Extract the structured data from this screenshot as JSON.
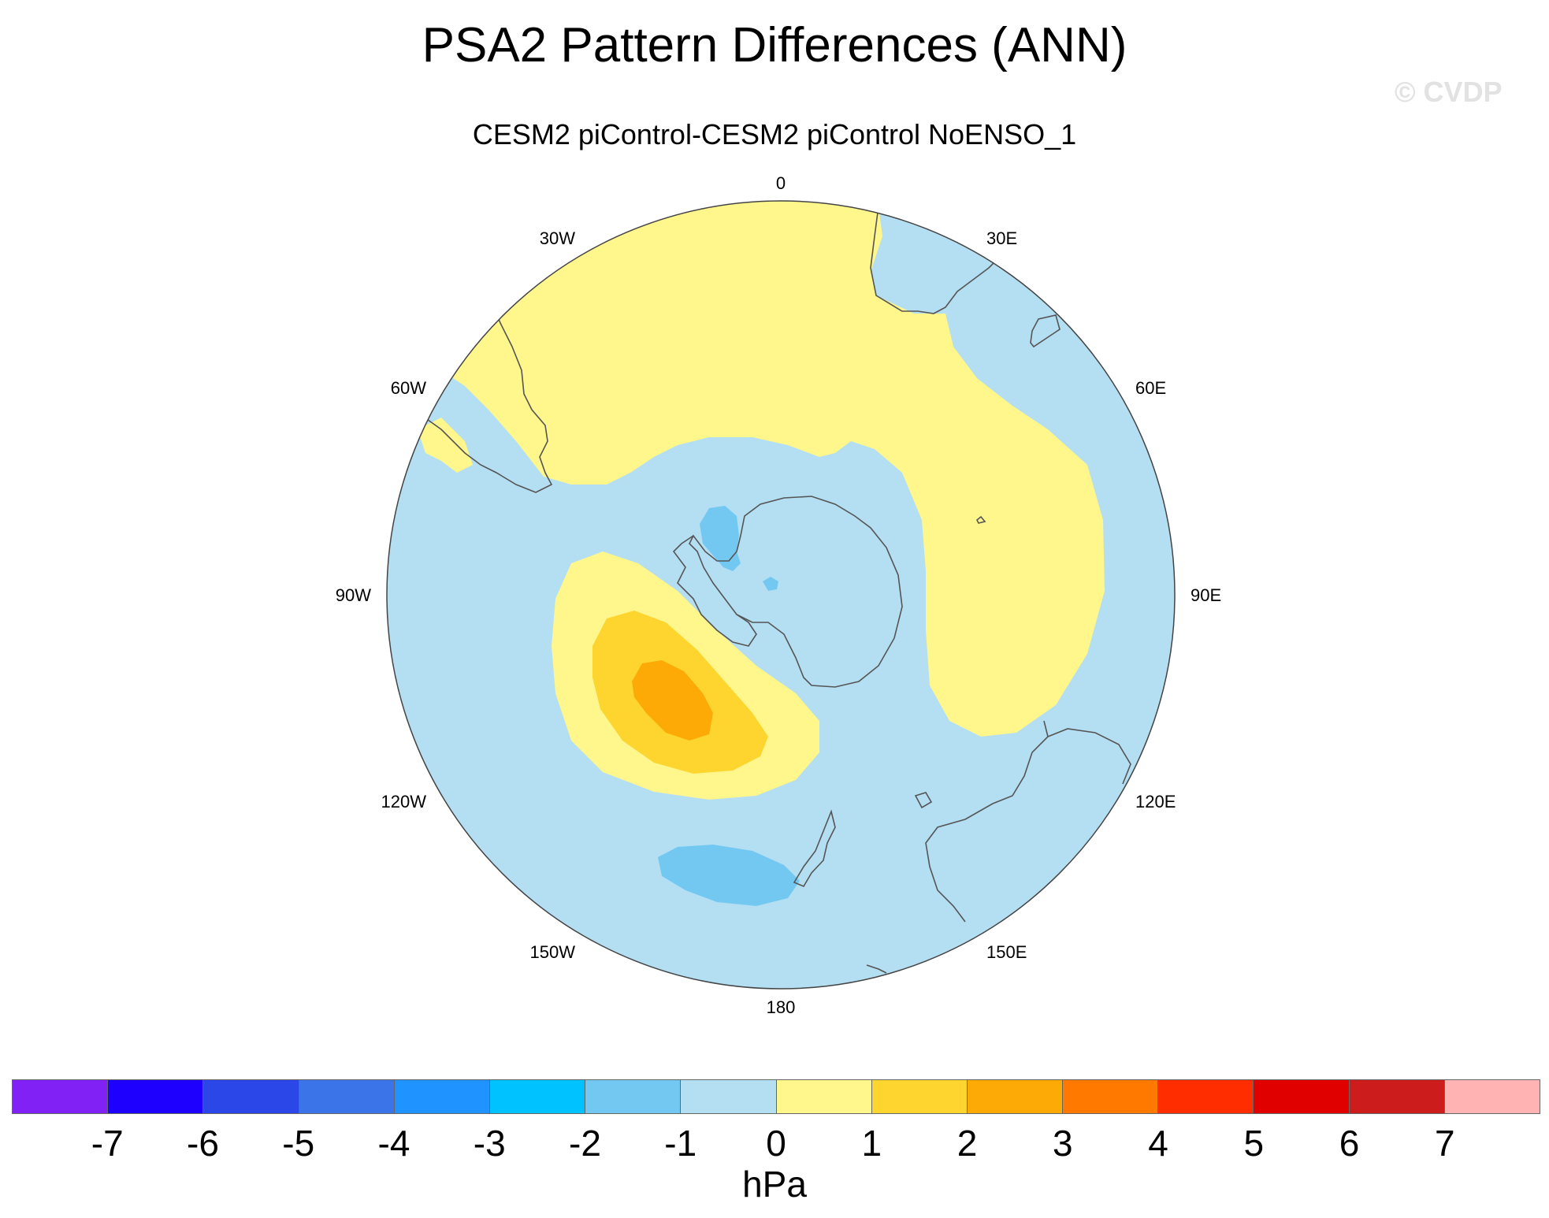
{
  "title": "PSA2 Pattern Differences (ANN)",
  "watermark": "© CVDP",
  "subtitle": "CESM2 piControl-CESM2 piControl NoENSO_1",
  "map": {
    "projection": "south-polar-stereographic",
    "longitude_labels": [
      "0",
      "30E",
      "60E",
      "90E",
      "120E",
      "150E",
      "180",
      "150W",
      "120W",
      "90W",
      "60W",
      "30W"
    ],
    "colors": {
      "ocean_neg1_0": "#b4def2",
      "pos0_1": "#fff68c",
      "pos1_2": "#fdd52e",
      "pos2_3": "#fdaa07",
      "neg2_neg1": "#73c8f2",
      "coast": "#555555",
      "border": "#444444"
    }
  },
  "colorbar": {
    "units": "hPa",
    "tick_labels": [
      "-7",
      "-6",
      "-5",
      "-4",
      "-3",
      "-2",
      "-1",
      "0",
      "1",
      "2",
      "3",
      "4",
      "5",
      "6",
      "7"
    ],
    "colors": [
      "#8121f5",
      "#1e00ff",
      "#2c47e8",
      "#3b73e8",
      "#1f93ff",
      "#00c2ff",
      "#73c8f2",
      "#b4def2",
      "#fff68c",
      "#fdd52e",
      "#fdaa07",
      "#ff7800",
      "#ff2d00",
      "#e10000",
      "#cd1c1c",
      "#ffb3b3"
    ]
  }
}
